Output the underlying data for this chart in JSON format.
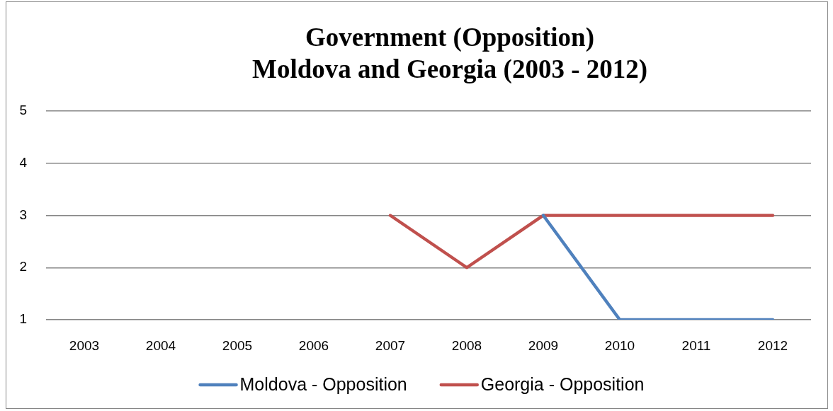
{
  "chart_data": {
    "type": "line",
    "title": "Government (Opposition)\nMoldova and Georgia (2003 - 2012)",
    "categories": [
      "2003",
      "2004",
      "2005",
      "2006",
      "2007",
      "2008",
      "2009",
      "2010",
      "2011",
      "2012"
    ],
    "series": [
      {
        "name": "Moldova - Opposition",
        "color": "#4f81bd",
        "values": [
          null,
          null,
          null,
          null,
          null,
          null,
          3,
          1,
          1,
          1
        ]
      },
      {
        "name": "Georgia - Opposition",
        "color": "#c0504d",
        "values": [
          null,
          null,
          null,
          null,
          3,
          2,
          3,
          3,
          3,
          3
        ]
      }
    ],
    "ylim": [
      1,
      5
    ],
    "yticks": [
      1,
      2,
      3,
      4,
      5
    ],
    "grid": "y",
    "legend": "bottom",
    "marker": "none",
    "line_style": "solid"
  }
}
